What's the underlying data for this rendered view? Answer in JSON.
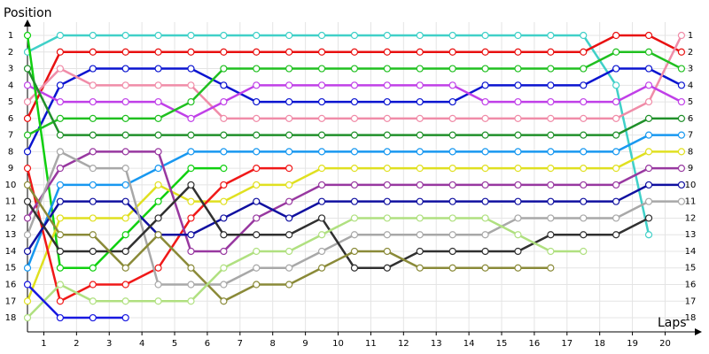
{
  "chart_data": {
    "type": "line",
    "x_label": "Laps",
    "y_label": "Position",
    "x": [
      0,
      1,
      2,
      3,
      4,
      5,
      6,
      7,
      8,
      9,
      10,
      11,
      12,
      13,
      14,
      15,
      16,
      17,
      18,
      19,
      20
    ],
    "xlim": [
      0,
      20.3
    ],
    "xticks": [
      {
        "value": 0.5,
        "label": "1"
      },
      {
        "value": 1.5,
        "label": "2"
      },
      {
        "value": 2.5,
        "label": "3"
      },
      {
        "value": 3.5,
        "label": "4"
      },
      {
        "value": 4.5,
        "label": "5"
      },
      {
        "value": 5.5,
        "label": "6"
      },
      {
        "value": 6.5,
        "label": "7"
      },
      {
        "value": 7.5,
        "label": "8"
      },
      {
        "value": 8.5,
        "label": "9"
      },
      {
        "value": 9.5,
        "label": "10"
      },
      {
        "value": 10.5,
        "label": "11"
      },
      {
        "value": 11.5,
        "label": "12"
      },
      {
        "value": 12.5,
        "label": "13"
      },
      {
        "value": 13.5,
        "label": "14"
      },
      {
        "value": 14.5,
        "label": "15"
      },
      {
        "value": 15.5,
        "label": "16"
      },
      {
        "value": 16.5,
        "label": "17"
      },
      {
        "value": 17.5,
        "label": "18"
      },
      {
        "value": 18.5,
        "label": "19"
      },
      {
        "value": 19.5,
        "label": "20"
      }
    ],
    "ylim": [
      18.85,
      0.2
    ],
    "yticks": [
      1,
      2,
      3,
      4,
      5,
      6,
      7,
      8,
      9,
      10,
      11,
      12,
      13,
      14,
      15,
      16,
      17,
      18
    ],
    "grid": true,
    "marker_fill": "#ffffff",
    "series": [
      {
        "color": "#40d0c8",
        "values": [
          2,
          1,
          1,
          1,
          1,
          1,
          1,
          1,
          1,
          1,
          1,
          1,
          1,
          1,
          1,
          1,
          1,
          1,
          4,
          13,
          null
        ]
      },
      {
        "color": "#e81010",
        "values": [
          6,
          2,
          2,
          2,
          2,
          2,
          2,
          2,
          2,
          2,
          2,
          2,
          2,
          2,
          2,
          2,
          2,
          2,
          1,
          1,
          2
        ]
      },
      {
        "color": "#0a14d0",
        "values": [
          8,
          4,
          3,
          3,
          3,
          3,
          4,
          5,
          5,
          5,
          5,
          5,
          5,
          5,
          4,
          4,
          4,
          4,
          3,
          3,
          4
        ]
      },
      {
        "color": "#f08ca8",
        "values": [
          5,
          3,
          4,
          4,
          4,
          4,
          6,
          6,
          6,
          6,
          6,
          6,
          6,
          6,
          6,
          6,
          6,
          6,
          6,
          5,
          1
        ]
      },
      {
        "color": "#c040e8",
        "values": [
          4,
          5,
          5,
          5,
          5,
          6,
          5,
          4,
          4,
          4,
          4,
          4,
          4,
          4,
          5,
          5,
          5,
          5,
          5,
          4,
          5
        ]
      },
      {
        "color": "#20c020",
        "values": [
          7,
          6,
          6,
          6,
          6,
          5,
          3,
          3,
          3,
          3,
          3,
          3,
          3,
          3,
          3,
          3,
          3,
          3,
          2,
          2,
          3
        ]
      },
      {
        "color": "#10d010",
        "values": [
          1,
          15,
          15,
          13,
          11,
          9,
          9,
          null,
          null,
          null,
          null,
          null,
          null,
          null,
          null,
          null,
          null,
          null,
          null,
          null,
          null
        ]
      },
      {
        "color": "#20902a",
        "values": [
          3,
          7,
          7,
          7,
          7,
          7,
          7,
          7,
          7,
          7,
          7,
          7,
          7,
          7,
          7,
          7,
          7,
          7,
          7,
          6,
          6
        ]
      },
      {
        "color": "#1898f0",
        "values": [
          15,
          10,
          10,
          10,
          9,
          8,
          8,
          8,
          8,
          8,
          8,
          8,
          8,
          8,
          8,
          8,
          8,
          8,
          8,
          7,
          7
        ]
      },
      {
        "color": "#e0e020",
        "values": [
          17,
          12,
          12,
          12,
          10,
          11,
          11,
          10,
          10,
          9,
          9,
          9,
          9,
          9,
          9,
          9,
          9,
          9,
          9,
          8,
          8
        ]
      },
      {
        "color": "#f01818",
        "values": [
          9,
          17,
          16,
          16,
          15,
          12,
          10,
          9,
          9,
          null,
          null,
          null,
          null,
          null,
          null,
          null,
          null,
          null,
          null,
          null,
          null
        ]
      },
      {
        "color": "#9838a0",
        "values": [
          12,
          9,
          8,
          8,
          8,
          14,
          14,
          12,
          11,
          10,
          10,
          10,
          10,
          10,
          10,
          10,
          10,
          10,
          10,
          9,
          9
        ]
      },
      {
        "color": "#1010a0",
        "values": [
          14,
          11,
          11,
          11,
          13,
          13,
          12,
          11,
          12,
          11,
          11,
          11,
          11,
          11,
          11,
          11,
          11,
          11,
          11,
          10,
          10
        ]
      },
      {
        "color": "#a8a8a8",
        "values": [
          13,
          8,
          9,
          9,
          16,
          16,
          16,
          15,
          15,
          14,
          13,
          13,
          13,
          13,
          13,
          12,
          12,
          12,
          12,
          11,
          11
        ]
      },
      {
        "color": "#303030",
        "values": [
          11,
          14,
          14,
          14,
          12,
          10,
          13,
          13,
          13,
          12,
          15,
          15,
          14,
          14,
          14,
          14,
          13,
          13,
          13,
          12,
          null
        ]
      },
      {
        "color": "#8a8a38",
        "values": [
          10,
          13,
          13,
          15,
          13,
          15,
          17,
          16,
          16,
          15,
          14,
          14,
          15,
          15,
          15,
          15,
          15,
          null,
          null,
          null,
          null
        ]
      },
      {
        "color": "#b0e080",
        "values": [
          18,
          16,
          17,
          17,
          17,
          17,
          15,
          14,
          14,
          13,
          12,
          12,
          12,
          12,
          12,
          13,
          14,
          14,
          null,
          null,
          null
        ]
      },
      {
        "color": "#1818e0",
        "values": [
          16,
          18,
          18,
          18,
          null,
          null,
          null,
          null,
          null,
          null,
          null,
          null,
          null,
          null,
          null,
          null,
          null,
          null,
          null,
          null,
          null
        ]
      }
    ]
  }
}
